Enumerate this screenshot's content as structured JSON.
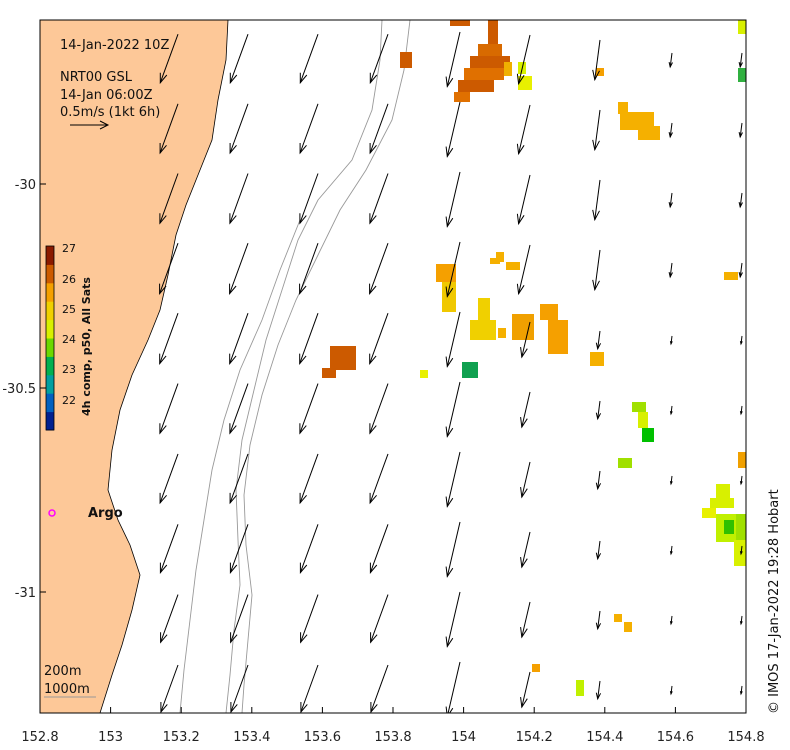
{
  "title": "14-Jan-2022 10Z",
  "product": {
    "line1": "NRT00 GSL",
    "line2": "14-Jan 06:00Z",
    "line3": "0.5m/s (1kt 6h)"
  },
  "x_ticks": [
    "152.8",
    "153",
    "153.2",
    "153.4",
    "153.6",
    "153.8",
    "154",
    "154.2",
    "154.4",
    "154.6",
    "154.8"
  ],
  "y_ticks": [
    "-30",
    "-30.5",
    "-31"
  ],
  "colorbar": {
    "label": "4h comp, p50, All Sats",
    "ticks": [
      "27",
      "26",
      "25",
      "24",
      "23",
      "22"
    ],
    "colors": [
      "#8b1a00",
      "#cc5a00",
      "#f5a000",
      "#f0d000",
      "#d8f000",
      "#6cd800",
      "#00b050",
      "#00a0a0",
      "#0060c0",
      "#002090"
    ]
  },
  "argo": {
    "label": "Argo",
    "color": "#ff00ff"
  },
  "contours": {
    "c200": "200m",
    "c1000": "1000m"
  },
  "credit": "© IMOS 17-Jan-2022 19:28 Hobart",
  "colors": {
    "land": "#fdc898",
    "arrow": "#000000",
    "contour": "#999999"
  }
}
